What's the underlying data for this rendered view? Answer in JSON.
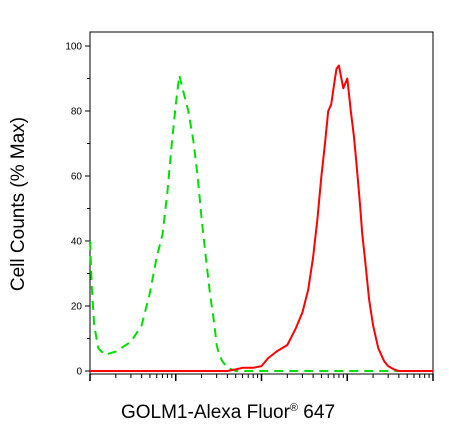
{
  "chart_data": {
    "type": "line",
    "title": "",
    "xlabel_main": "GOLM1-Alexa Fluor",
    "xlabel_sup": "®",
    "xlabel_tail": " 647",
    "ylabel": "Cell Counts (% Max)",
    "xscale": "log",
    "xlim": [
      1,
      10000
    ],
    "ylim": [
      0,
      100
    ],
    "yticks": [
      "0",
      "20",
      "40",
      "60",
      "80",
      "100"
    ],
    "grid": false,
    "legend": "none",
    "series": [
      {
        "color": "#00e000",
        "dash": "dashed",
        "x": [
          1,
          1.05,
          1.12,
          1.25,
          1.5,
          2,
          3,
          4,
          5,
          6,
          7,
          8,
          9,
          10,
          11,
          12,
          14,
          16,
          18,
          20,
          22,
          25,
          28,
          30,
          32,
          35,
          40,
          45,
          50,
          70,
          100,
          200,
          500,
          1000,
          3000,
          10000
        ],
        "y": [
          40,
          26,
          14,
          7,
          5,
          6,
          9,
          14,
          24,
          35,
          42,
          55,
          70,
          82,
          91,
          87,
          80,
          71,
          60,
          47,
          37,
          24,
          15,
          8,
          5,
          3,
          1,
          0.5,
          0,
          0,
          0,
          0,
          0,
          0,
          0,
          0
        ]
      },
      {
        "color": "#ff0000",
        "dash": "solid",
        "x": [
          1,
          10,
          20,
          30,
          40,
          50,
          60,
          70,
          80,
          100,
          120,
          150,
          200,
          250,
          300,
          350,
          400,
          450,
          500,
          550,
          600,
          650,
          700,
          750,
          800,
          900,
          1000,
          1100,
          1200,
          1300,
          1400,
          1500,
          1600,
          1800,
          2000,
          2300,
          2700,
          3000,
          3500,
          4000,
          5000,
          10000
        ],
        "y": [
          0,
          0,
          0,
          0,
          0,
          0.5,
          1,
          1,
          1,
          1.5,
          4,
          6,
          8,
          13,
          18,
          25,
          35,
          47,
          60,
          70,
          80,
          82,
          88,
          93,
          94,
          87,
          90,
          80,
          72,
          62,
          52,
          42,
          35,
          22,
          14,
          7,
          3,
          1.5,
          0.5,
          0,
          0,
          0
        ]
      }
    ]
  }
}
